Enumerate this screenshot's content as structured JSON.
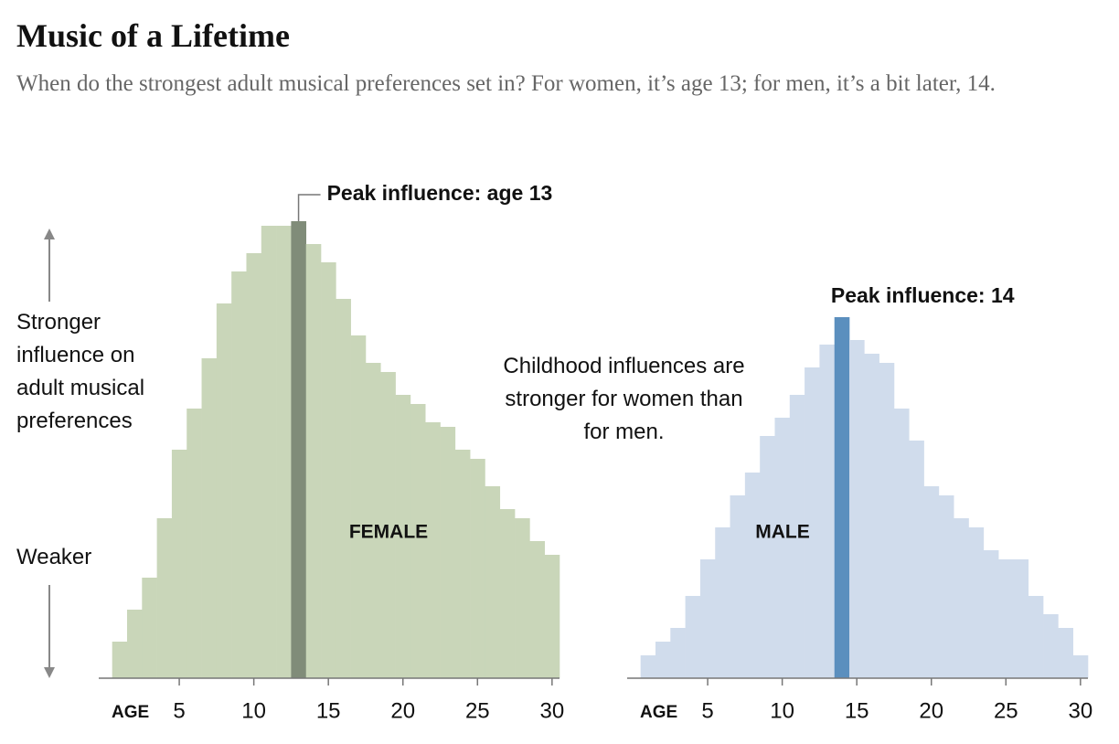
{
  "title": "Music of a Lifetime",
  "subtitle": "When do the strongest adult musical preferences set in? For women, it’s age 13; for men, it’s a bit later, 14.",
  "y_label_top": "Stronger influence on adult musical preferences",
  "y_label_bottom": "Weaker",
  "note": "Childhood influences are stronger for women than for men.",
  "chart_data": [
    {
      "type": "bar",
      "label": "FEMALE",
      "x_label": "AGE",
      "annotation": "Peak influence: age 13",
      "x": [
        1,
        2,
        3,
        4,
        5,
        6,
        7,
        8,
        9,
        10,
        11,
        12,
        13,
        14,
        15,
        16,
        17,
        18,
        19,
        20,
        21,
        22,
        23,
        24,
        25,
        26,
        27,
        28,
        29,
        30
      ],
      "values": [
        8,
        15,
        22,
        35,
        50,
        59,
        70,
        82,
        89,
        93,
        99,
        99,
        100,
        95,
        91,
        83,
        75,
        69,
        67,
        62,
        60,
        56,
        55,
        50,
        48,
        42,
        37,
        35,
        30,
        27
      ],
      "color": "#c9d6b9",
      "peak_color": "#808c79",
      "xlim": [
        -0.4,
        30.5
      ],
      "xticks": [
        5,
        10,
        15,
        20,
        25,
        30
      ],
      "ylim": [
        0,
        100
      ]
    },
    {
      "type": "bar",
      "label": "MALE",
      "x_label": "AGE",
      "annotation": "Peak influence: 14",
      "x": [
        1,
        2,
        3,
        4,
        5,
        6,
        7,
        8,
        9,
        10,
        11,
        12,
        13,
        14,
        15,
        16,
        17,
        18,
        19,
        20,
        21,
        22,
        23,
        24,
        25,
        26,
        27,
        28,
        29,
        30
      ],
      "values": [
        5,
        8,
        11,
        18,
        26,
        33,
        40,
        45,
        53,
        57,
        62,
        68,
        73,
        79,
        74,
        71,
        69,
        59,
        52,
        42,
        40,
        35,
        33,
        28,
        26,
        26,
        18,
        14,
        11,
        5
      ],
      "color": "#d0dcec",
      "peak_color": "#5b8fbe",
      "xlim": [
        -0.4,
        30.5
      ],
      "xticks": [
        5,
        10,
        15,
        20,
        25,
        30
      ],
      "ylim": [
        0,
        100
      ]
    }
  ]
}
